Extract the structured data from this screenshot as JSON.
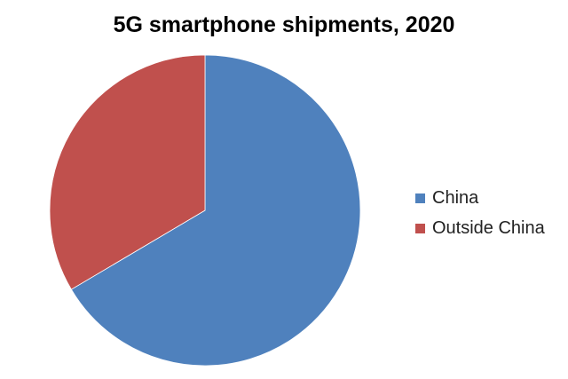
{
  "chart_data": {
    "type": "pie",
    "title": "5G smartphone shipments, 2020",
    "categories": [
      "China",
      "Outside China"
    ],
    "values": [
      66.5,
      33.5
    ],
    "colors": [
      "#4F81BD",
      "#C0504D"
    ],
    "legend_position": "right",
    "start_angle": "top, clockwise"
  }
}
